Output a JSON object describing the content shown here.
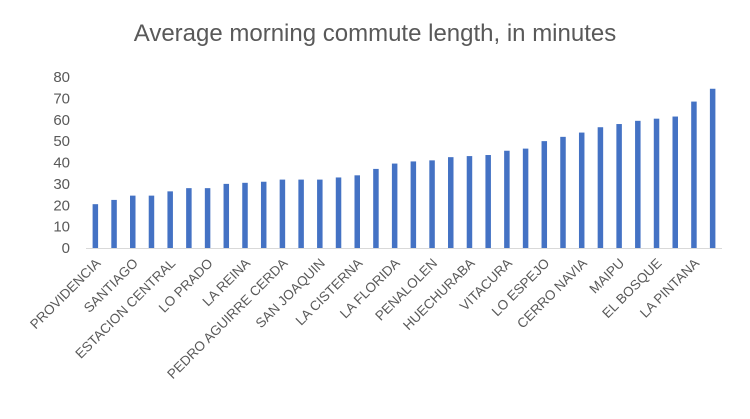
{
  "chart_data": {
    "type": "bar",
    "title": "Average morning commute length, in minutes",
    "xlabel": "",
    "ylabel": "",
    "ylim": [
      0,
      80
    ],
    "yticks": [
      0,
      10,
      20,
      30,
      40,
      50,
      60,
      70,
      80
    ],
    "grid": false,
    "legend": "none",
    "bar_color": "#4472C4",
    "categories": [
      "PROVIDENCIA",
      "",
      "SANTIAGO",
      "",
      "ESTACION CENTRAL",
      "",
      "LO PRADO",
      "",
      "LA REINA",
      "",
      "PEDRO AGUIRRE CERDA",
      "",
      "SAN JOAQUIN",
      "",
      "LA CISTERNA",
      "",
      "LA FLORIDA",
      "",
      "PENALOLEN",
      "",
      "HUECHURABA",
      "",
      "VITACURA",
      "",
      "LO ESPEJO",
      "",
      "CERRO NAVIA",
      "",
      "MAIPU",
      "",
      "EL BOSQUE",
      "",
      "LA PINTANA",
      ""
    ],
    "values": [
      20.5,
      22.5,
      24.5,
      24.5,
      26.5,
      28,
      28,
      30,
      30.5,
      31,
      32,
      32,
      32,
      33,
      34,
      37,
      39.5,
      40.5,
      41,
      42.5,
      43,
      43.5,
      45.5,
      46.5,
      50,
      52,
      54,
      56.5,
      58,
      59.5,
      60.5,
      61.5,
      68.5,
      74.5
    ]
  }
}
